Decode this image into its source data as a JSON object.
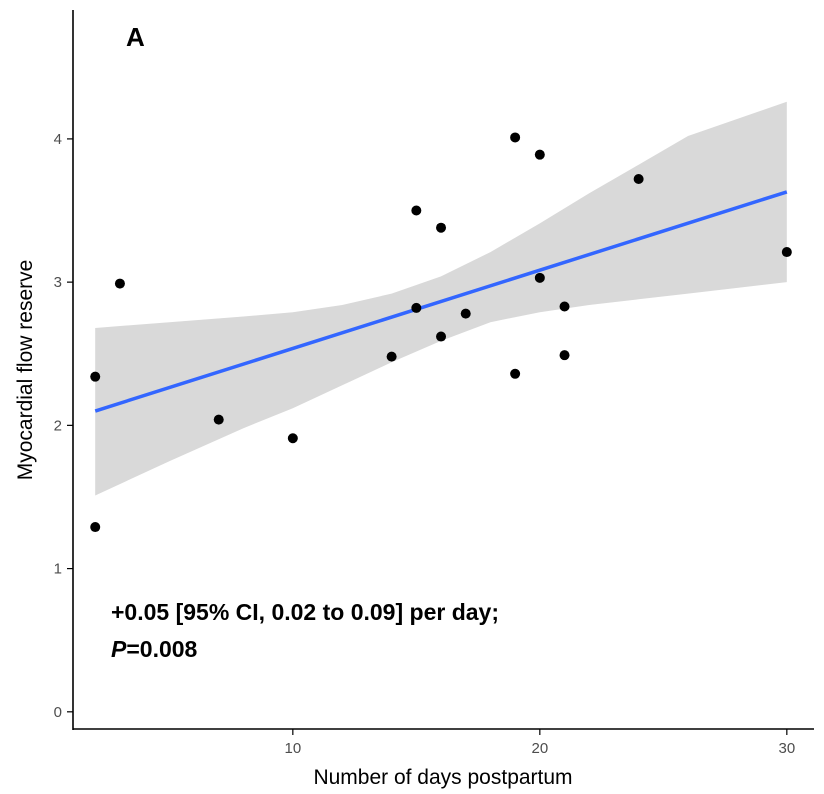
{
  "chart_data": {
    "type": "scatter",
    "panel_label": "A",
    "xlabel": "Number of days postpartum",
    "ylabel": "Myocardial flow reserve",
    "xlim": [
      1.1,
      31.1
    ],
    "ylim": [
      -0.12,
      4.9
    ],
    "x_ticks": [
      10,
      20,
      30
    ],
    "y_ticks": [
      0,
      1,
      2,
      3,
      4
    ],
    "points": [
      {
        "x": 2,
        "y": 2.34
      },
      {
        "x": 2,
        "y": 1.29
      },
      {
        "x": 3,
        "y": 2.99
      },
      {
        "x": 7,
        "y": 2.04
      },
      {
        "x": 10,
        "y": 1.91
      },
      {
        "x": 14,
        "y": 2.48
      },
      {
        "x": 15,
        "y": 3.5
      },
      {
        "x": 15,
        "y": 2.82
      },
      {
        "x": 16,
        "y": 3.38
      },
      {
        "x": 16,
        "y": 2.62
      },
      {
        "x": 17,
        "y": 2.78
      },
      {
        "x": 19,
        "y": 4.01
      },
      {
        "x": 19,
        "y": 2.36
      },
      {
        "x": 20,
        "y": 3.89
      },
      {
        "x": 20,
        "y": 3.03
      },
      {
        "x": 21,
        "y": 2.83
      },
      {
        "x": 21,
        "y": 2.49
      },
      {
        "x": 24,
        "y": 3.72
      },
      {
        "x": 30,
        "y": 3.21
      }
    ],
    "fit": {
      "x": [
        2,
        30
      ],
      "y": [
        2.1,
        3.63
      ],
      "color": "#3366ff"
    },
    "confidence_band": {
      "x": [
        2,
        5,
        8,
        10,
        12,
        14,
        16,
        18,
        20,
        22,
        24,
        26,
        28,
        30
      ],
      "upper": [
        2.68,
        2.72,
        2.76,
        2.79,
        2.84,
        2.92,
        3.04,
        3.21,
        3.41,
        3.62,
        3.82,
        4.02,
        4.14,
        4.26
      ],
      "lower": [
        1.51,
        1.75,
        1.98,
        2.12,
        2.28,
        2.44,
        2.59,
        2.72,
        2.79,
        2.84,
        2.88,
        2.92,
        2.96,
        3.0
      ],
      "color": "#d9d9d9"
    },
    "annotation": {
      "line1": "+0.05 [95% CI, 0.02 to 0.09] per day;",
      "line2_italic": "P",
      "line2_rest": "=0.008"
    },
    "grid": false,
    "legend": "none"
  }
}
